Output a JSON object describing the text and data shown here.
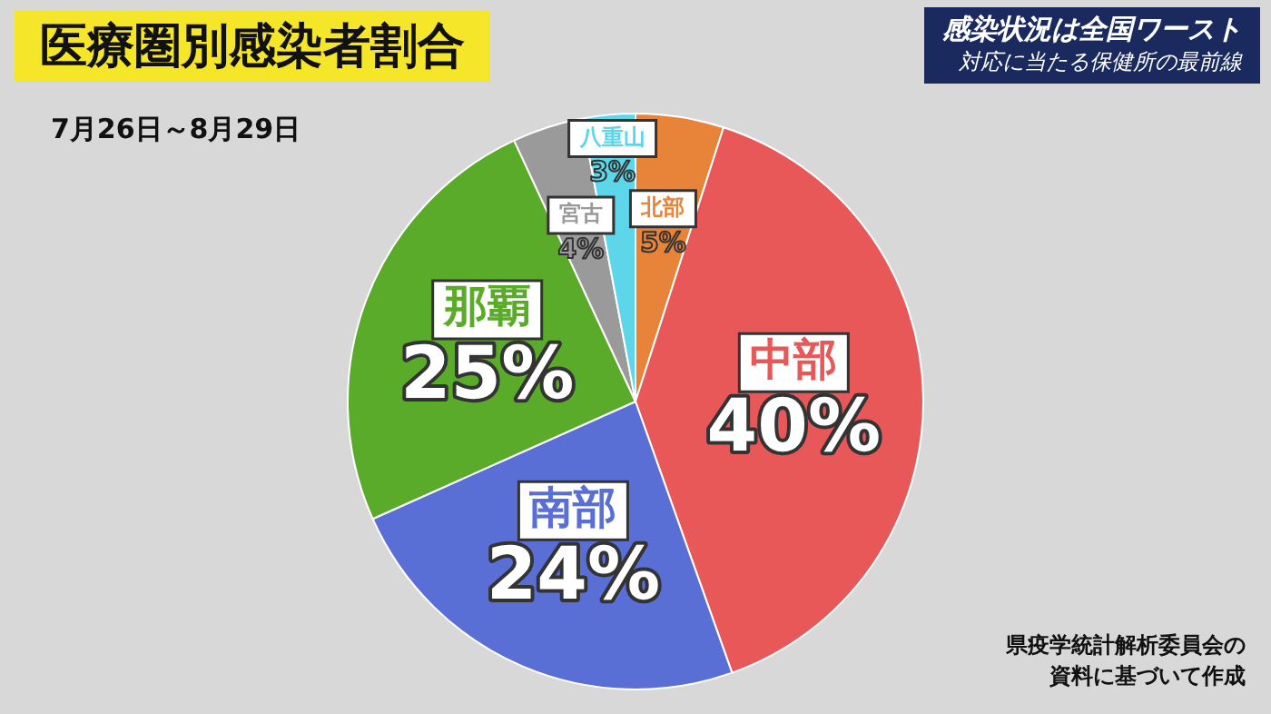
{
  "chart_data": {
    "type": "pie",
    "title": "医療圏別感染者割合",
    "subtitle": "7月26日～8月29日",
    "annotations": [
      "感染状況は全国ワースト",
      "対応に当たる保健所の最前線",
      "県疫学統計解析委員会の資料に基づいて作成"
    ],
    "categories": [
      "北部",
      "中部",
      "南部",
      "那覇",
      "宮古",
      "八重山"
    ],
    "values": [
      5,
      40,
      24,
      25,
      4,
      3
    ],
    "value_labels": [
      "5%",
      "40%",
      "24%",
      "25%",
      "4%",
      "3%"
    ],
    "colors": [
      "#e8843a",
      "#e85858",
      "#5a6fd6",
      "#5aab2a",
      "#9a9a9a",
      "#5cd6e8"
    ]
  }
}
